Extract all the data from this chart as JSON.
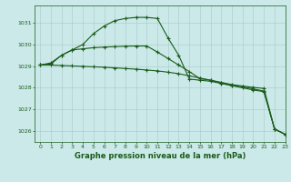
{
  "background_color": "#cbe9e9",
  "grid_color": "#a8c8c8",
  "line_color": "#1a5c1a",
  "title": "Graphe pression niveau de la mer (hPa)",
  "xlim": [
    -0.5,
    23
  ],
  "ylim": [
    1025.5,
    1031.8
  ],
  "yticks": [
    1026,
    1027,
    1028,
    1029,
    1030,
    1031
  ],
  "xticks": [
    0,
    1,
    2,
    3,
    4,
    5,
    6,
    7,
    8,
    9,
    10,
    11,
    12,
    13,
    14,
    15,
    16,
    17,
    18,
    19,
    20,
    21,
    22,
    23
  ],
  "line1_x": [
    0,
    1,
    2,
    3,
    4,
    5,
    6,
    7,
    8,
    9,
    10,
    11,
    12,
    13,
    14,
    15,
    16,
    17,
    18,
    19,
    20,
    21,
    22,
    23
  ],
  "line1_y": [
    1029.05,
    1029.15,
    1029.5,
    1029.75,
    1030.0,
    1030.5,
    1030.85,
    1031.1,
    1031.2,
    1031.25,
    1031.25,
    1031.2,
    1030.3,
    1029.5,
    1028.4,
    1028.35,
    1028.3,
    1028.2,
    1028.1,
    1028.05,
    1027.95,
    1027.85,
    1026.1,
    1025.85
  ],
  "line2_x": [
    0,
    1,
    2,
    3,
    4,
    5,
    6,
    7,
    8,
    9,
    10,
    11,
    12,
    13,
    14,
    15,
    16,
    17,
    18,
    19,
    20,
    21,
    22,
    23
  ],
  "line2_y": [
    1029.05,
    1029.1,
    1029.5,
    1029.75,
    1029.8,
    1029.85,
    1029.88,
    1029.9,
    1029.92,
    1029.93,
    1029.93,
    1029.65,
    1029.35,
    1029.05,
    1028.75,
    1028.42,
    1028.35,
    1028.25,
    1028.15,
    1028.08,
    1028.02,
    1027.97,
    1026.1,
    1025.85
  ],
  "line3_x": [
    0,
    1,
    2,
    3,
    4,
    5,
    6,
    7,
    8,
    9,
    10,
    11,
    12,
    13,
    14,
    15,
    16,
    17,
    18,
    19,
    20,
    21,
    22,
    23
  ],
  "line3_y": [
    1029.05,
    1029.05,
    1029.03,
    1029.01,
    1028.99,
    1028.97,
    1028.95,
    1028.92,
    1028.89,
    1028.86,
    1028.82,
    1028.78,
    1028.72,
    1028.65,
    1028.55,
    1028.45,
    1028.35,
    1028.22,
    1028.1,
    1028.0,
    1027.9,
    1027.82,
    1026.1,
    1025.85
  ]
}
